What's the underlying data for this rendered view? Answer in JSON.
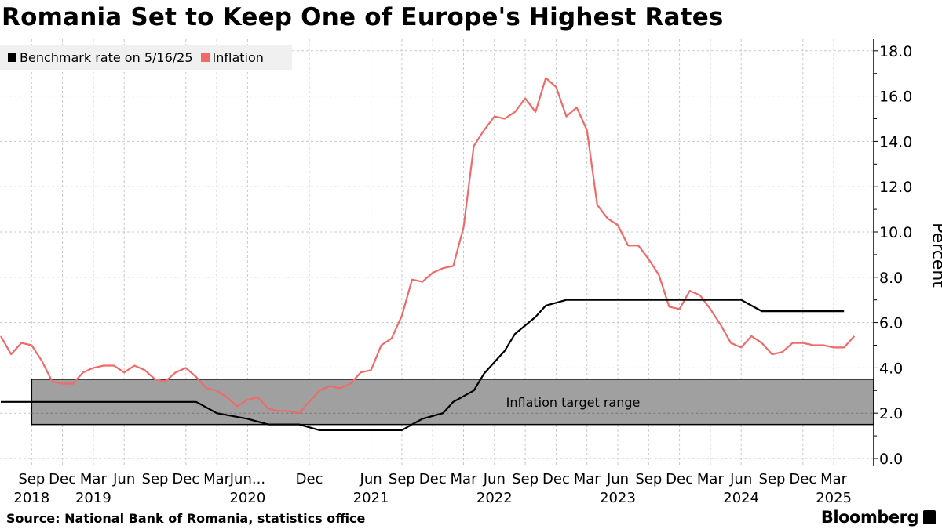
{
  "title": "Romania Set to Keep One of Europe's Highest Rates",
  "legend": [
    {
      "label": "Benchmark rate on 5/16/25",
      "color": "#000000"
    },
    {
      "label": "Inflation",
      "color": "#f06a6a"
    }
  ],
  "source": "Source: National Bank of Romania, statistics office",
  "brand": "Bloomberg",
  "chart_data": {
    "type": "line",
    "title": "Romania Set to Keep One of Europe's Highest Rates",
    "ylabel": "Percent",
    "ylim": [
      0,
      18
    ],
    "yticks": [
      "0.0",
      "2.0",
      "4.0",
      "6.0",
      "8.0",
      "10.0",
      "12.0",
      "14.0",
      "16.0",
      "18.0"
    ],
    "grid": true,
    "legend_position": "top-left",
    "xticks": [
      {
        "date": "2018-09",
        "label": "Sep",
        "year": "2018"
      },
      {
        "date": "2018-12",
        "label": "Dec"
      },
      {
        "date": "2019-03",
        "label": "Mar",
        "year": "2019"
      },
      {
        "date": "2019-06",
        "label": "Jun"
      },
      {
        "date": "2019-09",
        "label": "Sep"
      },
      {
        "date": "2019-12",
        "label": "Dec"
      },
      {
        "date": "2020-03",
        "label": "Mar"
      },
      {
        "date": "2020-06",
        "label": "Jun...",
        "year": "2020"
      },
      {
        "date": "2020-12",
        "label": "Dec"
      },
      {
        "date": "2021-06",
        "label": "Jun",
        "year": "2021"
      },
      {
        "date": "2021-09",
        "label": "Sep"
      },
      {
        "date": "2021-12",
        "label": "Dec"
      },
      {
        "date": "2022-03",
        "label": "Mar"
      },
      {
        "date": "2022-06",
        "label": "Jun",
        "year": "2022"
      },
      {
        "date": "2022-09",
        "label": "Sep"
      },
      {
        "date": "2022-12",
        "label": "Dec"
      },
      {
        "date": "2023-03",
        "label": "Mar"
      },
      {
        "date": "2023-06",
        "label": "Jun",
        "year": "2023"
      },
      {
        "date": "2023-09",
        "label": "Sep"
      },
      {
        "date": "2023-12",
        "label": "Dec"
      },
      {
        "date": "2024-03",
        "label": "Mar"
      },
      {
        "date": "2024-06",
        "label": "Jun",
        "year": "2024"
      },
      {
        "date": "2024-09",
        "label": "Sep"
      },
      {
        "date": "2024-12",
        "label": "Dec"
      },
      {
        "date": "2025-03",
        "label": "Mar",
        "year": "2025"
      }
    ],
    "band": {
      "label": "Inflation target range",
      "from": 1.5,
      "to": 3.5,
      "start": "2018-09",
      "color": "#a0a0a0"
    },
    "series": [
      {
        "name": "Benchmark rate on 5/16/25",
        "color": "#000000",
        "points": [
          [
            "2018-06",
            2.5
          ],
          [
            "2020-01",
            2.5
          ],
          [
            "2020-03",
            2.0
          ],
          [
            "2020-06",
            1.75
          ],
          [
            "2020-08",
            1.5
          ],
          [
            "2020-11",
            1.5
          ],
          [
            "2021-01",
            1.25
          ],
          [
            "2021-09",
            1.25
          ],
          [
            "2021-10",
            1.5
          ],
          [
            "2021-11",
            1.75
          ],
          [
            "2022-01",
            2.0
          ],
          [
            "2022-02",
            2.5
          ],
          [
            "2022-04",
            3.0
          ],
          [
            "2022-05",
            3.75
          ],
          [
            "2022-07",
            4.75
          ],
          [
            "2022-08",
            5.5
          ],
          [
            "2022-10",
            6.25
          ],
          [
            "2022-11",
            6.75
          ],
          [
            "2023-01",
            7.0
          ],
          [
            "2024-06",
            7.0
          ],
          [
            "2024-07",
            6.75
          ],
          [
            "2024-08",
            6.5
          ],
          [
            "2025-04",
            6.5
          ]
        ]
      },
      {
        "name": "Inflation",
        "color": "#f06a6a",
        "points": [
          [
            "2018-06",
            5.4
          ],
          [
            "2018-07",
            4.6
          ],
          [
            "2018-08",
            5.1
          ],
          [
            "2018-09",
            5.0
          ],
          [
            "2018-10",
            4.3
          ],
          [
            "2018-11",
            3.4
          ],
          [
            "2018-12",
            3.3
          ],
          [
            "2019-01",
            3.3
          ],
          [
            "2019-02",
            3.8
          ],
          [
            "2019-03",
            4.0
          ],
          [
            "2019-04",
            4.1
          ],
          [
            "2019-05",
            4.1
          ],
          [
            "2019-06",
            3.8
          ],
          [
            "2019-07",
            4.1
          ],
          [
            "2019-08",
            3.9
          ],
          [
            "2019-09",
            3.5
          ],
          [
            "2019-10",
            3.4
          ],
          [
            "2019-11",
            3.8
          ],
          [
            "2019-12",
            4.0
          ],
          [
            "2020-01",
            3.6
          ],
          [
            "2020-02",
            3.1
          ],
          [
            "2020-03",
            3.0
          ],
          [
            "2020-04",
            2.7
          ],
          [
            "2020-05",
            2.3
          ],
          [
            "2020-06",
            2.6
          ],
          [
            "2020-07",
            2.7
          ],
          [
            "2020-08",
            2.2
          ],
          [
            "2020-09",
            2.1
          ],
          [
            "2020-10",
            2.1
          ],
          [
            "2020-11",
            2.0
          ],
          [
            "2021-01",
            3.0
          ],
          [
            "2021-02",
            3.2
          ],
          [
            "2021-03",
            3.1
          ],
          [
            "2021-04",
            3.3
          ],
          [
            "2021-05",
            3.8
          ],
          [
            "2021-06",
            3.9
          ],
          [
            "2021-07",
            5.0
          ],
          [
            "2021-08",
            5.3
          ],
          [
            "2021-09",
            6.3
          ],
          [
            "2021-10",
            7.9
          ],
          [
            "2021-11",
            7.8
          ],
          [
            "2021-12",
            8.2
          ],
          [
            "2022-01",
            8.4
          ],
          [
            "2022-02",
            8.5
          ],
          [
            "2022-03",
            10.2
          ],
          [
            "2022-04",
            13.8
          ],
          [
            "2022-05",
            14.5
          ],
          [
            "2022-06",
            15.1
          ],
          [
            "2022-07",
            15.0
          ],
          [
            "2022-08",
            15.3
          ],
          [
            "2022-09",
            15.9
          ],
          [
            "2022-10",
            15.3
          ],
          [
            "2022-11",
            16.8
          ],
          [
            "2022-12",
            16.4
          ],
          [
            "2023-01",
            15.1
          ],
          [
            "2023-02",
            15.5
          ],
          [
            "2023-03",
            14.5
          ],
          [
            "2023-04",
            11.2
          ],
          [
            "2023-05",
            10.6
          ],
          [
            "2023-06",
            10.3
          ],
          [
            "2023-07",
            9.4
          ],
          [
            "2023-08",
            9.4
          ],
          [
            "2023-09",
            8.8
          ],
          [
            "2023-10",
            8.1
          ],
          [
            "2023-11",
            6.7
          ],
          [
            "2023-12",
            6.6
          ],
          [
            "2024-01",
            7.4
          ],
          [
            "2024-02",
            7.2
          ],
          [
            "2024-03",
            6.6
          ],
          [
            "2024-04",
            5.9
          ],
          [
            "2024-05",
            5.1
          ],
          [
            "2024-06",
            4.9
          ],
          [
            "2024-07",
            5.4
          ],
          [
            "2024-08",
            5.1
          ],
          [
            "2024-09",
            4.6
          ],
          [
            "2024-10",
            4.7
          ],
          [
            "2024-11",
            5.1
          ],
          [
            "2024-12",
            5.1
          ],
          [
            "2025-01",
            5.0
          ],
          [
            "2025-02",
            5.0
          ],
          [
            "2025-03",
            4.9
          ],
          [
            "2025-04",
            4.9
          ],
          [
            "2025-05",
            5.4
          ]
        ]
      }
    ]
  }
}
